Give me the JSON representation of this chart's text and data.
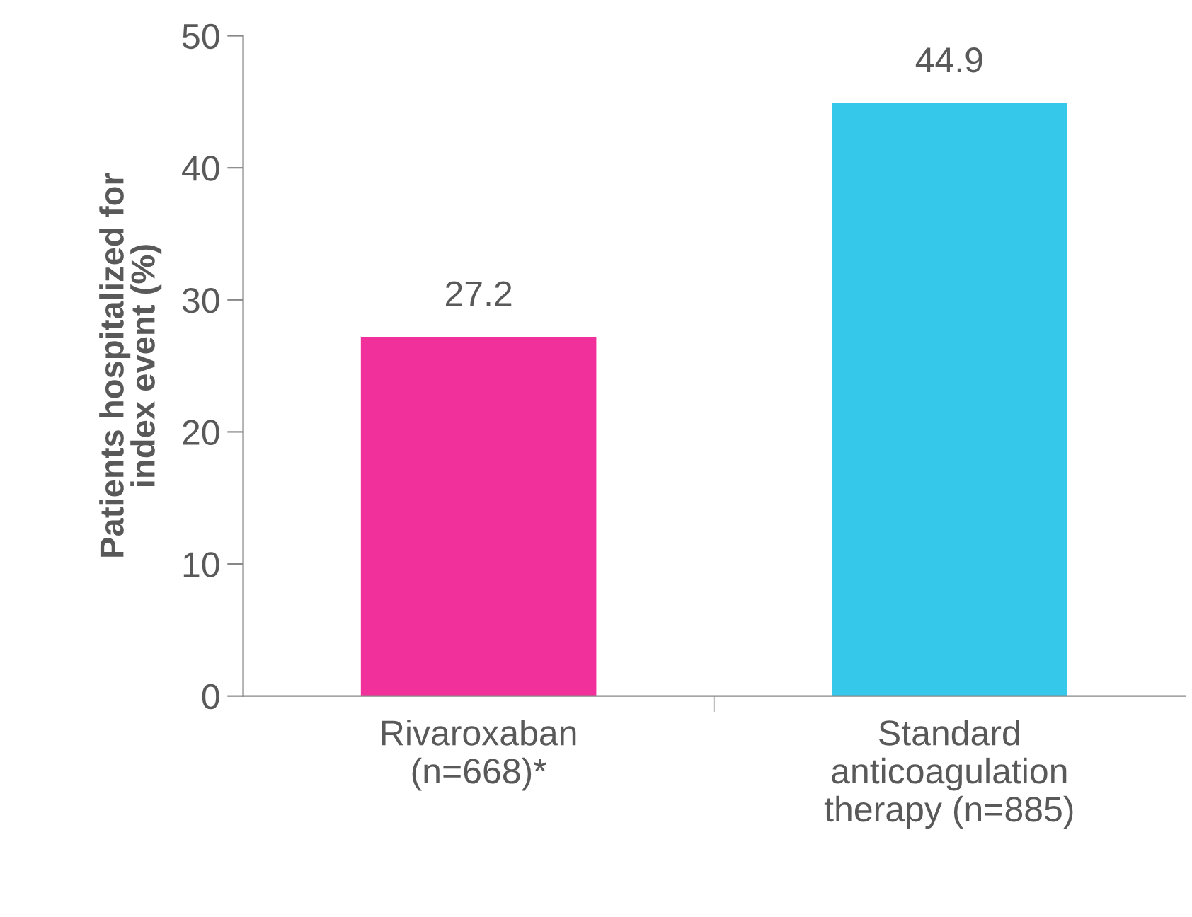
{
  "chart_data": {
    "type": "bar",
    "ylabel": "Patients hospitalized for\nindex event (%)",
    "categories": [
      "Rivaroxaban\n(n=668)*",
      "Standard\nanticoagulation\ntherapy (n=885)"
    ],
    "values": [
      27.2,
      44.9
    ],
    "colors": [
      "#f2309b",
      "#35c8ea"
    ],
    "ylim": [
      0,
      50
    ],
    "yticks": [
      0,
      10,
      20,
      30,
      40,
      50
    ],
    "grid": false,
    "data_labels": true
  }
}
